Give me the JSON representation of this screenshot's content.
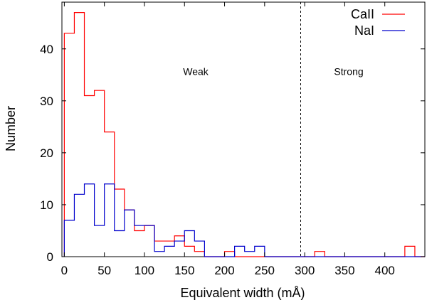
{
  "chart_data": {
    "type": "histogram",
    "title": "",
    "xlabel": "Equivalent width (mÅ)",
    "ylabel": "Number",
    "xlim": [
      -3,
      450
    ],
    "ylim": [
      0,
      49
    ],
    "xticks": [
      0,
      50,
      100,
      150,
      200,
      250,
      300,
      350,
      400
    ],
    "yticks": [
      0,
      10,
      20,
      30,
      40
    ],
    "bin_width": 12.5,
    "bin_start": 0,
    "grid": false,
    "legend_position": "top-right",
    "series": [
      {
        "name": "CaII",
        "color": "#ff0000",
        "values": [
          43,
          47,
          31,
          32,
          24,
          13,
          9,
          5,
          6,
          3,
          3,
          4,
          2,
          1,
          0,
          0,
          1,
          0,
          0,
          0,
          0,
          0,
          0,
          0,
          0,
          1,
          0,
          0,
          0,
          0,
          0,
          0,
          0,
          0,
          2,
          0
        ]
      },
      {
        "name": "NaI",
        "color": "#0000cc",
        "values": [
          7,
          12,
          14,
          6,
          14,
          5,
          9,
          6,
          6,
          1,
          2,
          3,
          5,
          3,
          0,
          0,
          0,
          2,
          1,
          2,
          0,
          0,
          0,
          0,
          0,
          0,
          0,
          0,
          0,
          0,
          0,
          0,
          0,
          0,
          0,
          0
        ]
      }
    ],
    "divider": {
      "x": 295,
      "style": "dashed"
    },
    "annotations": [
      {
        "text": "Weak",
        "x": 164,
        "y": 35
      },
      {
        "text": "Strong",
        "x": 355,
        "y": 35
      }
    ]
  },
  "legend": [
    {
      "label": "CaII",
      "color": "#ff0000"
    },
    {
      "label": "NaI",
      "color": "#0000cc"
    }
  ]
}
